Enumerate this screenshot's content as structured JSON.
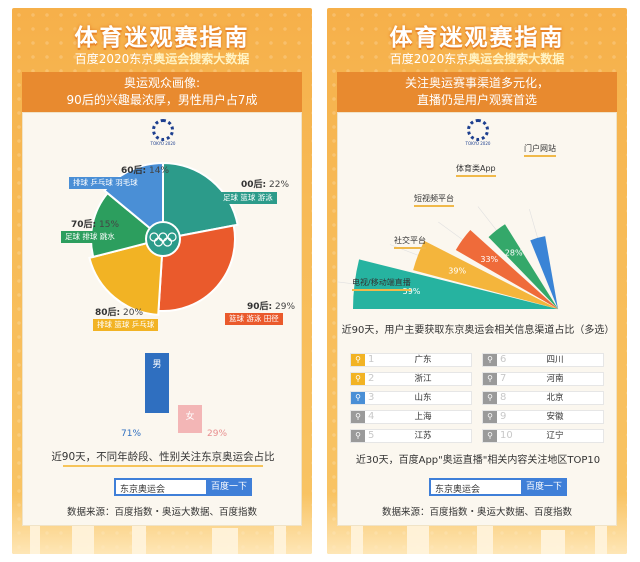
{
  "headline": "体育迷观赛指南",
  "subheadline": {
    "prefix": "百度2020东京",
    "highlight": "奥运会搜索大数据"
  },
  "left": {
    "banner_line1": "奥运观众画像:",
    "banner_line2": "90后的兴趣最浓厚，男性用户占7成",
    "logo_text": "TOKYO 2020",
    "age_groups": [
      {
        "label": "00后:",
        "pct": "22%",
        "tags": "足球 篮球 游泳",
        "color": "#2c9b8a"
      },
      {
        "label": "90后:",
        "pct": "29%",
        "tags": "篮球 游泳 田径",
        "color": "#ea5a2c"
      },
      {
        "label": "80后:",
        "pct": "20%",
        "tags": "排球 篮球 乒乓球",
        "color": "#f2b324"
      },
      {
        "label": "70后:",
        "pct": "15%",
        "tags": "足球 排球 跳水",
        "color": "#2c9e5e"
      },
      {
        "label": "60后:",
        "pct": "14%",
        "tags": "排球 乒乓球 羽毛球",
        "color": "#4a8fd6"
      }
    ],
    "gender": {
      "male_label": "男",
      "male_pct": "71%",
      "female_label": "女",
      "female_pct": "29%"
    },
    "caption": "近90天，不同年龄段、性别关注东京奥运会占比",
    "search_value": "东京奥运会",
    "search_button": "百度一下",
    "source": "数据来源：百度指数・奥运大数据、百度指数"
  },
  "right": {
    "banner_line1": "关注奥运赛事渠道多元化，",
    "banner_line2": "直播仍是用户观赛首选",
    "logo_text": "TOKYO 2020",
    "channels": [
      {
        "name": "电视/移动端直播",
        "pct": "59%",
        "color": "#26b3a0"
      },
      {
        "name": "社交平台",
        "pct": "39%",
        "color": "#f4b53c"
      },
      {
        "name": "短视频平台",
        "pct": "33%",
        "color": "#ef6b3a"
      },
      {
        "name": "体育类App",
        "pct": "28%",
        "color": "#34a86a"
      },
      {
        "name": "门户网站",
        "pct": "",
        "color": "#3a84d6"
      }
    ],
    "chart_caption": "近90天，用户主要获取东京奥运会相关信息渠道占比（多选）",
    "ranking": [
      {
        "num": "1",
        "city": "广东"
      },
      {
        "num": "2",
        "city": "浙江"
      },
      {
        "num": "3",
        "city": "山东"
      },
      {
        "num": "4",
        "city": "上海"
      },
      {
        "num": "5",
        "city": "江苏"
      },
      {
        "num": "6",
        "city": "四川"
      },
      {
        "num": "7",
        "city": "河南"
      },
      {
        "num": "8",
        "city": "北京"
      },
      {
        "num": "9",
        "city": "安徽"
      },
      {
        "num": "10",
        "city": "辽宁"
      }
    ],
    "ranking_caption": "近30天，百度App\"奥运直播\"相关内容关注地区TOP10",
    "search_value": "东京奥运会",
    "search_button": "百度一下",
    "source": "数据来源：百度指数・奥运大数据、百度指数"
  },
  "colors": {
    "accent_orange": "#f6b04a",
    "banner": "#e88a2f",
    "search_blue": "#3f7fd8"
  }
}
